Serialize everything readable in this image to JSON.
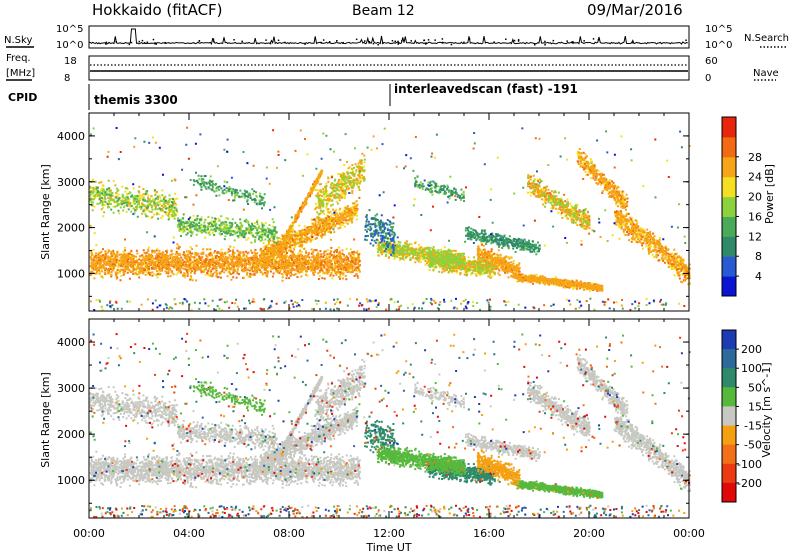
{
  "header": {
    "site": "Hokkaido (fitACF)",
    "beam": "Beam 12",
    "date": "09/Mar/2016"
  },
  "noise_panel": {
    "left_label": "N.Sky",
    "right_label": "N.Search",
    "left_ticks": [
      "10^5",
      "10^0"
    ],
    "right_ticks": [
      "10^5",
      "10^0"
    ]
  },
  "freq_panel": {
    "left_label_1": "Freq.",
    "left_label_2": "[MHz]",
    "left_ticks": [
      "18",
      "8"
    ],
    "right_ticks": [
      "60",
      "0"
    ],
    "right_label": "Nave"
  },
  "cpid_panel": {
    "label": "CPID",
    "segments": [
      {
        "name": "themis 3300",
        "start_hour": 0
      },
      {
        "name": "interleavedscan (fast) -191",
        "start_hour": 12
      }
    ]
  },
  "chart_data": [
    {
      "type": "heatmap",
      "title": "",
      "ylabel": "Slant Range [km]",
      "xlabel": "",
      "x_range_hours": [
        0,
        24
      ],
      "ylim": [
        180,
        4500
      ],
      "y_ticks": [
        "1000",
        "2000",
        "3000",
        "4000"
      ],
      "colorbar_label": "Power [dB]",
      "colorbar_ticks": [
        "4",
        "8",
        "12",
        "16",
        "20",
        "24",
        "28"
      ],
      "colorbar_colors": [
        "#0a14d2",
        "#2a5ad2",
        "#2f8a6a",
        "#49aa5a",
        "#8cd23c",
        "#f4e020",
        "#f6a418",
        "#f26a12",
        "#e8260e"
      ]
    },
    {
      "type": "heatmap",
      "title": "",
      "ylabel": "Slant Range [km]",
      "xlabel": "Time UT",
      "x_range_hours": [
        0,
        24
      ],
      "ylim": [
        180,
        4500
      ],
      "y_ticks": [
        "1000",
        "2000",
        "3000",
        "4000"
      ],
      "x_ticks": [
        "00:00",
        "04:00",
        "08:00",
        "12:00",
        "16:00",
        "20:00",
        "00:00"
      ],
      "colorbar_label": "Velocity [m s^-1]",
      "colorbar_ticks": [
        "200",
        "100",
        "50",
        "15",
        "-15",
        "-50",
        "-100",
        "-200"
      ],
      "colorbar_colors": [
        "#1c3cb4",
        "#2c6a9a",
        "#2f8a6a",
        "#57b93c",
        "#c8c8c3",
        "#f4a010",
        "#f27018",
        "#ec3a12",
        "#e00808"
      ]
    }
  ]
}
